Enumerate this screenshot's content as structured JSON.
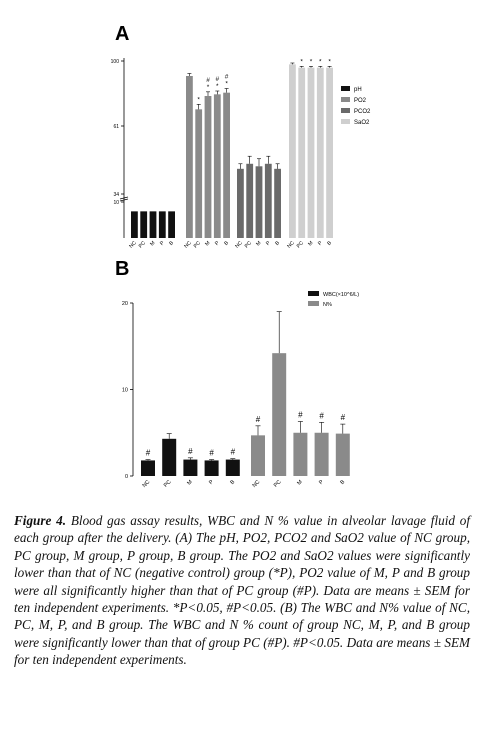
{
  "chart_data": [
    {
      "panel": "A",
      "type": "bar",
      "y_axis_breaks": true,
      "y_ticks": [
        10,
        34,
        61,
        100
      ],
      "ylim": [
        0,
        100
      ],
      "group_tick_labels": [
        "NC",
        "PC",
        "M",
        "P",
        "B"
      ],
      "series": [
        {
          "name": "pH",
          "color": "#111111",
          "values": [
            7.4,
            7.4,
            7.4,
            7.4,
            7.4
          ],
          "errors": [
            0,
            0,
            0,
            0,
            0
          ],
          "marks": [
            "",
            "",
            "",
            "",
            ""
          ]
        },
        {
          "name": "PO2",
          "color": "#8a8a8a",
          "values": [
            91,
            71,
            79,
            80,
            81
          ],
          "errors": [
            1.5,
            3,
            2.5,
            2,
            2.5
          ],
          "marks": [
            "",
            "*",
            "# *",
            "# *",
            "# *"
          ]
        },
        {
          "name": "PCO2",
          "color": "#6a6a6a",
          "values": [
            44,
            46,
            45,
            46,
            44
          ],
          "errors": [
            2,
            3,
            3,
            3,
            2
          ],
          "marks": [
            "",
            "",
            "",
            "",
            ""
          ]
        },
        {
          "name": "SaO2",
          "color": "#cfcfcf",
          "values": [
            98,
            96,
            96,
            96,
            96
          ],
          "errors": [
            0.8,
            0.8,
            0.8,
            0.8,
            0.8
          ],
          "marks": [
            "",
            "*",
            "*",
            "*",
            "*"
          ]
        }
      ]
    },
    {
      "panel": "B",
      "type": "bar",
      "y_ticks": [
        0,
        10,
        20
      ],
      "ylim": [
        0,
        20
      ],
      "group_tick_labels": [
        "NC",
        "PC",
        "M",
        "P",
        "B"
      ],
      "series": [
        {
          "name": "WBC(×10^6/L)",
          "color": "#111111",
          "values": [
            1.8,
            4.3,
            1.9,
            1.8,
            1.9
          ],
          "errors": [
            0.1,
            0.6,
            0.2,
            0.1,
            0.1
          ],
          "marks": [
            "#",
            "",
            "#",
            "#",
            "#"
          ]
        },
        {
          "name": "N%",
          "color": "#8a8a8a",
          "values": [
            4.7,
            14.2,
            5.0,
            5.0,
            4.9
          ],
          "errors": [
            1.1,
            4.8,
            1.3,
            1.2,
            1.1
          ],
          "marks": [
            "#",
            "",
            "#",
            "#",
            "#"
          ]
        }
      ]
    }
  ],
  "caption": {
    "label": "Figure 4.",
    "text": "Blood gas assay results, WBC and N % value in alveolar lavage fluid of each group after the delivery. (A) The pH, PO2, PCO2 and SaO2 value of NC group, PC group, M group, P group, B group. The PO2 and SaO2 values were significantly lower than that of NC (negative control) group (*P), PO2 value of M, P and B group were all significantly higher than that of PC group (#P). Data are means ± SEM for ten independent experiments. *P<0.05, #P<0.05. (B) The WBC and N% value of NC, PC, M, P, and B group. The WBC and N % count of group NC, M, P, and B group were significantly lower than that of group PC (#P). #P<0.05. Data are means ± SEM for ten independent experiments."
  }
}
